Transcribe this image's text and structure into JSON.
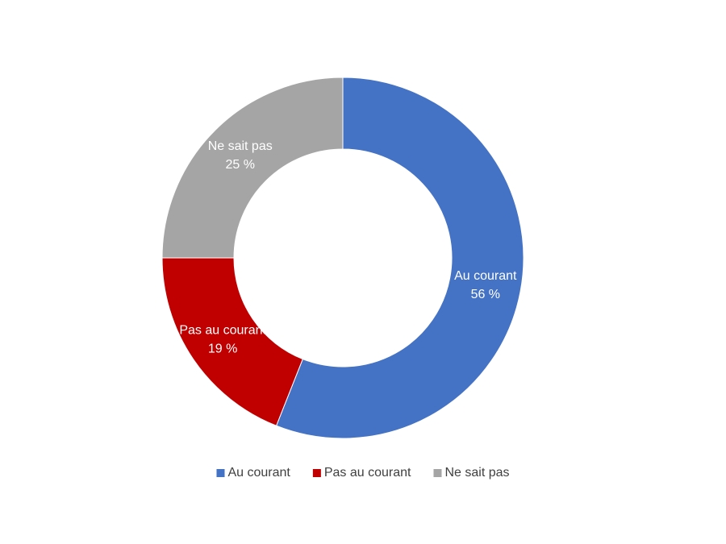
{
  "chart_data": {
    "type": "donut",
    "categories": [
      "Au courant",
      "Pas au courant",
      "Ne sait pas"
    ],
    "values": [
      56,
      19,
      25
    ],
    "value_labels": [
      "56 %",
      "19 %",
      "25 %"
    ],
    "colors": [
      "#4472c4",
      "#c00000",
      "#a5a5a5"
    ],
    "legend": "bottom"
  }
}
